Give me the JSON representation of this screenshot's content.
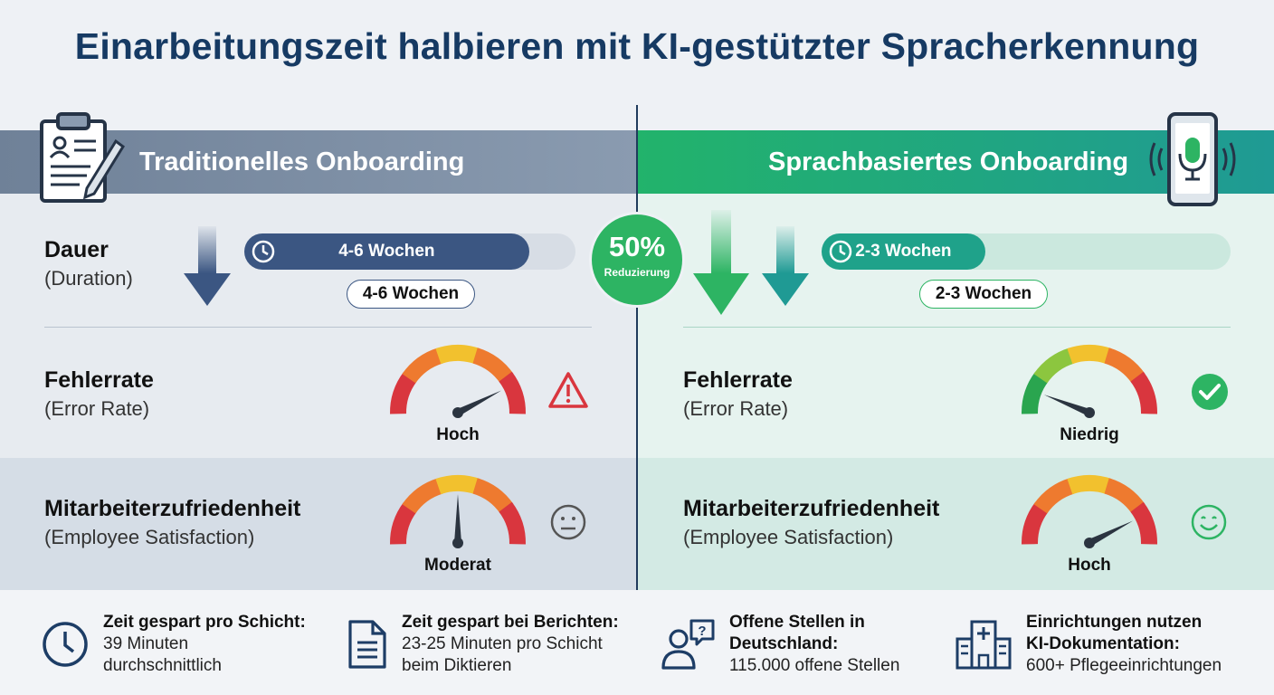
{
  "title": "Einarbeitungszeit halbieren mit KI-gestützter Spracherkennung",
  "colors": {
    "navy": "#163a63",
    "slate_fill": "#3b5682",
    "green": "#2db463",
    "teal": "#1f9a94",
    "red": "#d9363e"
  },
  "traditional": {
    "header": "Traditionelles Onboarding",
    "header_icon": "clipboard-icon",
    "duration": {
      "label": "Dauer",
      "label_en": "(Duration)",
      "bar_text": "4-6 Wochen",
      "pill_text": "4-6 Wochen",
      "bar_fill_fraction": 0.86
    },
    "error": {
      "label": "Fehlerrate",
      "label_en": "(Error Rate)",
      "gauge_value": 0.85,
      "gauge_text": "Hoch",
      "status_icon": "warning-icon"
    },
    "satisfaction": {
      "label": "Mitarbeiterzufriedenheit",
      "label_en": "(Employee Satisfaction)",
      "gauge_value": 0.5,
      "gauge_text": "Moderat",
      "status_icon": "neutral-face-icon"
    }
  },
  "voice": {
    "header": "Sprachbasiertes Onboarding",
    "header_icon": "smartphone-microphone-icon",
    "duration": {
      "label": "Dauer",
      "label_en": "(Duration)",
      "bar_text": "2-3 Wochen",
      "pill_text": "2-3 Wochen",
      "bar_fill_fraction": 0.4
    },
    "error": {
      "label": "Fehlerrate",
      "label_en": "(Error Rate)",
      "gauge_value": 0.12,
      "gauge_text": "Niedrig",
      "status_icon": "check-circle-icon"
    },
    "satisfaction": {
      "label": "Mitarbeiterzufriedenheit",
      "label_en": "(Employee Satisfaction)",
      "gauge_value": 0.85,
      "gauge_text": "Hoch",
      "status_icon": "happy-face-icon"
    }
  },
  "badge": {
    "percent": "50%",
    "label": "Reduzierung"
  },
  "footer": [
    {
      "icon": "clock-icon",
      "heading": "Zeit gespart pro Schicht:",
      "lines": [
        "39 Minuten",
        "durchschnittlich"
      ]
    },
    {
      "icon": "document-icon",
      "heading": "Zeit gespart bei Berichten:",
      "lines": [
        "23-25 Minuten pro Schicht",
        "beim Diktieren"
      ]
    },
    {
      "icon": "person-question-icon",
      "heading": "Offene Stellen in",
      "lines": [
        "Deutschland:",
        "115.000 offene Stellen"
      ]
    },
    {
      "icon": "hospital-icon",
      "heading": "Einrichtungen nutzen",
      "lines": [
        "KI-Dokumentation:",
        "600+ Pflegeeinrichtungen"
      ]
    }
  ]
}
